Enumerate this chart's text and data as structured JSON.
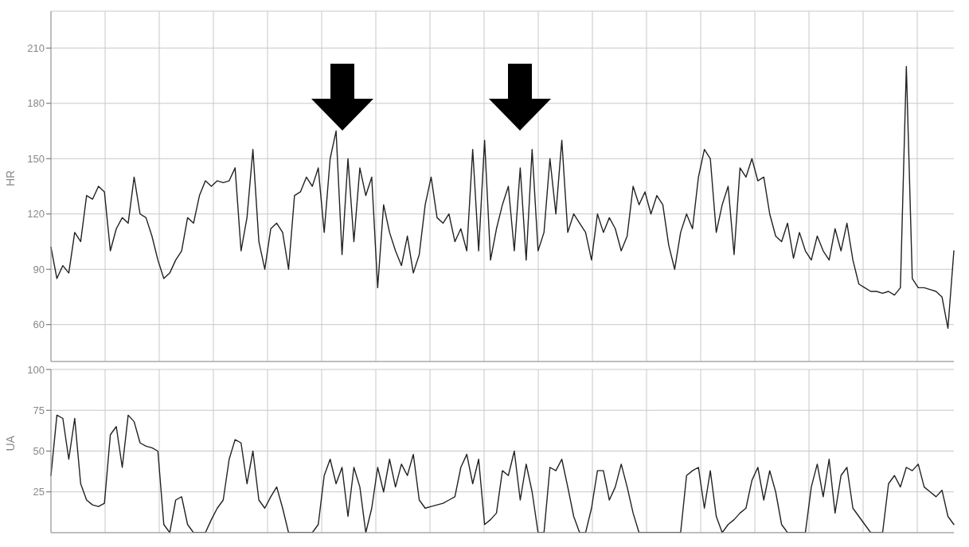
{
  "chart_data": [
    {
      "type": "line",
      "ylabel": "HR",
      "ylim": [
        40,
        230
      ],
      "yticks": [
        60,
        90,
        120,
        150,
        180,
        210
      ],
      "grid": true,
      "marker": "none",
      "line_style": "solid",
      "tick_labels": "y",
      "categories": [
        null,
        null,
        null,
        null,
        null,
        null,
        null,
        null,
        null,
        null,
        null,
        null,
        null,
        null,
        null,
        null,
        null,
        null,
        null,
        null,
        null,
        null,
        null,
        null,
        null,
        null,
        null,
        null,
        null,
        null,
        null,
        null,
        null,
        null,
        null,
        null,
        null,
        null,
        null,
        null,
        null,
        null,
        null,
        null,
        null,
        null,
        null,
        null,
        null,
        null,
        null,
        null,
        null,
        null,
        null,
        null,
        null,
        null,
        null,
        null,
        null,
        null,
        null,
        null,
        null,
        null,
        null,
        null,
        null,
        null,
        null,
        null,
        null,
        null,
        null,
        null,
        null,
        null,
        null,
        null,
        null,
        null,
        null,
        null,
        null,
        null,
        null,
        null,
        null,
        null,
        null,
        null,
        null,
        null,
        null,
        null,
        null,
        null,
        null,
        null,
        null,
        null,
        null,
        null,
        null,
        null,
        null,
        null,
        null,
        null,
        null,
        null,
        null,
        null,
        null,
        null,
        null,
        null,
        null,
        null,
        null,
        null,
        null,
        null,
        null,
        null,
        null,
        null,
        null,
        null,
        null,
        null,
        null,
        null,
        null,
        null,
        null,
        null,
        null,
        null,
        null,
        null,
        null,
        null,
        null,
        null,
        null,
        null,
        null,
        null,
        null,
        null,
        null
      ],
      "series": [
        {
          "color": "#222222",
          "values": [
            102,
            85,
            92,
            88,
            110,
            105,
            130,
            128,
            135,
            132,
            100,
            112,
            118,
            115,
            140,
            120,
            118,
            108,
            95,
            85,
            88,
            95,
            100,
            118,
            115,
            130,
            138,
            135,
            138,
            137,
            138,
            145,
            100,
            118,
            155,
            105,
            90,
            112,
            115,
            110,
            90,
            130,
            132,
            140,
            135,
            145,
            110,
            150,
            165,
            98,
            150,
            105,
            145,
            130,
            140,
            80,
            125,
            110,
            100,
            92,
            108,
            88,
            98,
            125,
            140,
            118,
            115,
            120,
            105,
            112,
            100,
            155,
            100,
            160,
            95,
            112,
            125,
            135,
            100,
            145,
            95,
            155,
            100,
            110,
            150,
            120,
            160,
            110,
            120,
            115,
            110,
            95,
            120,
            110,
            118,
            112,
            100,
            108,
            135,
            125,
            132,
            120,
            130,
            125,
            103,
            90,
            110,
            120,
            112,
            140,
            155,
            150,
            110,
            125,
            135,
            98,
            145,
            140,
            150,
            138,
            140,
            120,
            108,
            105,
            115,
            96,
            110,
            100,
            95,
            108,
            100,
            95,
            112,
            100,
            115,
            95,
            82,
            80,
            78,
            78,
            77,
            78,
            76,
            80,
            200,
            85,
            80,
            80,
            79,
            78,
            75,
            58,
            100
          ]
        }
      ]
    },
    {
      "type": "line",
      "ylabel": "UA",
      "ylim": [
        0,
        100
      ],
      "yticks": [
        25,
        50,
        75,
        100
      ],
      "grid": true,
      "marker": "none",
      "line_style": "solid",
      "tick_labels": "y",
      "categories": [
        null,
        null,
        null,
        null,
        null,
        null,
        null,
        null,
        null,
        null,
        null,
        null,
        null,
        null,
        null,
        null,
        null,
        null,
        null,
        null,
        null,
        null,
        null,
        null,
        null,
        null,
        null,
        null,
        null,
        null,
        null,
        null,
        null,
        null,
        null,
        null,
        null,
        null,
        null,
        null,
        null,
        null,
        null,
        null,
        null,
        null,
        null,
        null,
        null,
        null,
        null,
        null,
        null,
        null,
        null,
        null,
        null,
        null,
        null,
        null,
        null,
        null,
        null,
        null,
        null,
        null,
        null,
        null,
        null,
        null,
        null,
        null,
        null,
        null,
        null,
        null,
        null,
        null,
        null,
        null,
        null,
        null,
        null,
        null,
        null,
        null,
        null,
        null,
        null,
        null,
        null,
        null,
        null,
        null,
        null,
        null,
        null,
        null,
        null,
        null,
        null,
        null,
        null,
        null,
        null,
        null,
        null,
        null,
        null,
        null,
        null,
        null,
        null,
        null,
        null,
        null,
        null,
        null,
        null,
        null,
        null,
        null,
        null,
        null,
        null,
        null,
        null,
        null,
        null,
        null,
        null,
        null,
        null,
        null,
        null,
        null,
        null,
        null,
        null,
        null,
        null,
        null,
        null,
        null,
        null,
        null,
        null,
        null,
        null,
        null,
        null,
        null,
        null
      ],
      "series": [
        {
          "color": "#222222",
          "values": [
            35,
            72,
            70,
            45,
            70,
            30,
            20,
            17,
            16,
            18,
            60,
            65,
            40,
            72,
            68,
            55,
            53,
            52,
            50,
            5,
            0,
            20,
            22,
            5,
            0,
            0,
            0,
            8,
            15,
            20,
            45,
            57,
            55,
            30,
            50,
            20,
            15,
            22,
            28,
            15,
            0,
            0,
            0,
            0,
            0,
            5,
            35,
            45,
            30,
            40,
            10,
            40,
            28,
            0,
            15,
            40,
            25,
            45,
            28,
            42,
            35,
            48,
            20,
            15,
            16,
            17,
            18,
            20,
            22,
            40,
            48,
            30,
            45,
            5,
            8,
            12,
            38,
            35,
            50,
            20,
            42,
            25,
            0,
            0,
            40,
            38,
            45,
            28,
            10,
            0,
            0,
            15,
            38,
            38,
            20,
            28,
            42,
            28,
            12,
            0,
            0,
            0,
            0,
            0,
            0,
            0,
            0,
            35,
            38,
            40,
            15,
            38,
            10,
            0,
            5,
            8,
            12,
            15,
            32,
            40,
            20,
            38,
            25,
            5,
            0,
            0,
            0,
            0,
            28,
            42,
            22,
            45,
            12,
            35,
            40,
            15,
            10,
            5,
            0,
            0,
            0,
            30,
            35,
            28,
            40,
            38,
            42,
            28,
            25,
            22,
            26,
            10,
            5
          ]
        }
      ]
    }
  ]
}
